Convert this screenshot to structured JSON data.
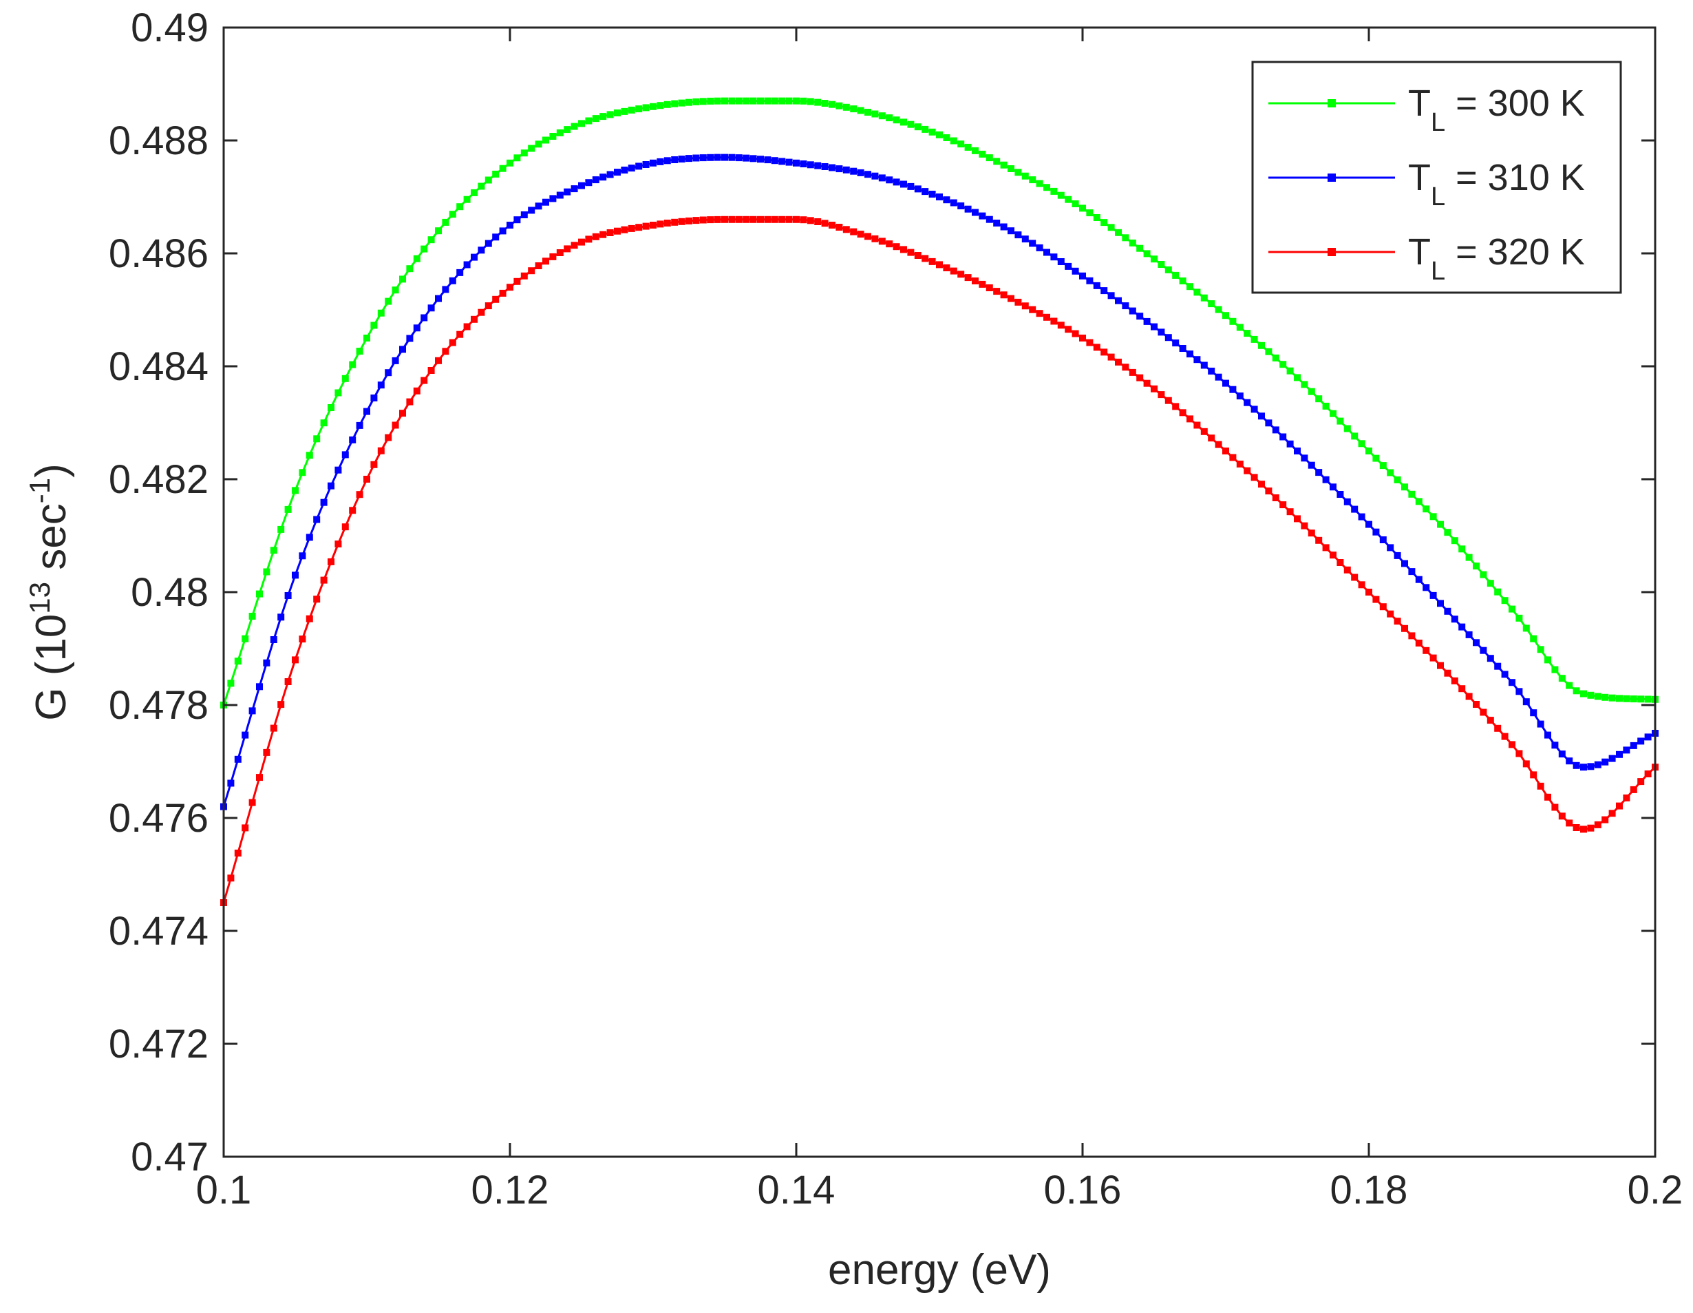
{
  "chart_data": {
    "type": "line",
    "title": "",
    "xlabel": "energy (eV)",
    "ylabel": {
      "prefix": "G (10",
      "exp1": "13",
      "mid": " sec",
      "exp2": "-1",
      "suffix": ")"
    },
    "xlim": [
      0.1,
      0.2
    ],
    "ylim": [
      0.47,
      0.49
    ],
    "xticks": [
      0.1,
      0.12,
      0.14,
      0.16,
      0.18,
      0.2
    ],
    "xtick_labels": [
      "0.1",
      "0.12",
      "0.14",
      "0.16",
      "0.18",
      "0.2"
    ],
    "yticks": [
      0.47,
      0.472,
      0.474,
      0.476,
      0.478,
      0.48,
      0.482,
      0.484,
      0.486,
      0.488,
      0.49
    ],
    "ytick_labels": [
      "0.47",
      "0.472",
      "0.474",
      "0.476",
      "0.478",
      "0.48",
      "0.482",
      "0.484",
      "0.486",
      "0.488",
      "0.49"
    ],
    "grid": false,
    "legend_position": "top-right",
    "x": [
      0.1,
      0.105,
      0.11,
      0.115,
      0.12,
      0.125,
      0.13,
      0.135,
      0.14,
      0.145,
      0.15,
      0.155,
      0.16,
      0.165,
      0.17,
      0.175,
      0.18,
      0.185,
      0.19,
      0.195,
      0.2
    ],
    "series": [
      {
        "name": "T_L = 300 K",
        "label_main": "T",
        "label_sub": "L",
        "label_rest": " = 300 K",
        "color": "#00ff00",
        "values": [
          0.478,
          0.4818,
          0.4845,
          0.4864,
          0.4876,
          0.4883,
          0.4886,
          0.4887,
          0.4887,
          0.4885,
          0.4881,
          0.4875,
          0.4868,
          0.4859,
          0.4849,
          0.4838,
          0.4825,
          0.4812,
          0.4797,
          0.4782,
          0.4781
        ]
      },
      {
        "name": "T_L = 310 K",
        "label_main": "T",
        "label_sub": "L",
        "label_rest": " = 310 K",
        "color": "#0000ff",
        "values": [
          0.4762,
          0.4803,
          0.4832,
          0.4852,
          0.4865,
          0.4872,
          0.4876,
          0.4877,
          0.4876,
          0.4874,
          0.487,
          0.4864,
          0.4856,
          0.4847,
          0.4837,
          0.4825,
          0.4812,
          0.4798,
          0.4784,
          0.4769,
          0.4775
        ]
      },
      {
        "name": "T_L = 320 K",
        "label_main": "T",
        "label_sub": "L",
        "label_rest": " = 320 K",
        "color": "#ff0000",
        "values": [
          0.4745,
          0.4788,
          0.482,
          0.4841,
          0.4854,
          0.4862,
          0.4865,
          0.4866,
          0.4866,
          0.4863,
          0.4858,
          0.4852,
          0.4845,
          0.4836,
          0.4825,
          0.4813,
          0.48,
          0.4787,
          0.4773,
          0.4758,
          0.4769
        ]
      }
    ]
  }
}
